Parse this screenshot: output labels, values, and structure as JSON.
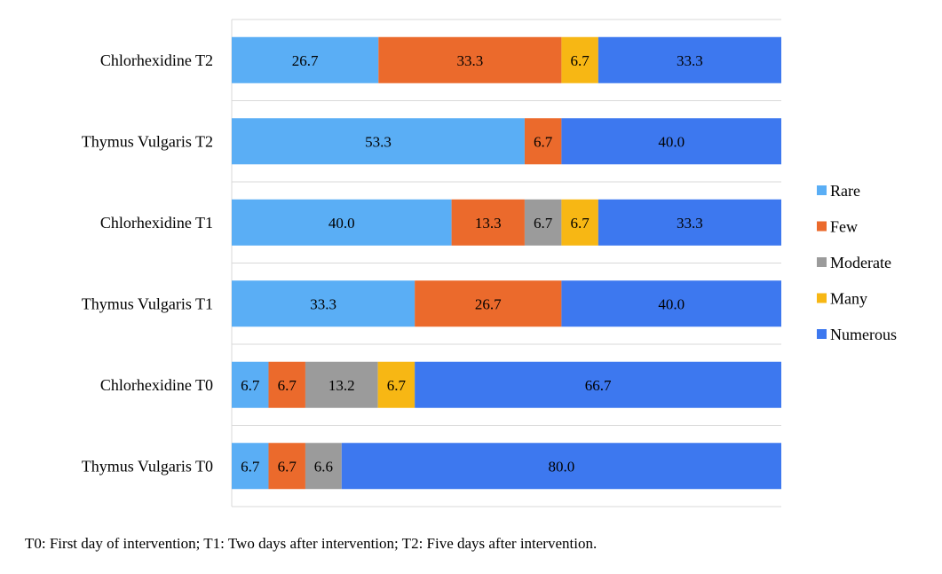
{
  "chart_data": {
    "type": "bar",
    "orientation": "horizontal",
    "stacked": true,
    "percent_stacked": true,
    "grid": true,
    "legend_position": "right",
    "categories": [
      "Chlorhexidine T2",
      "Thymus Vulgaris T2",
      "Chlorhexidine T1",
      "Thymus Vulgaris T1",
      "Chlorhexidine T0",
      "Thymus Vulgaris T0"
    ],
    "series": [
      {
        "name": "Rare",
        "color": "#5aaef5",
        "values": [
          26.7,
          53.3,
          40.0,
          33.3,
          6.7,
          6.7
        ]
      },
      {
        "name": "Few",
        "color": "#eb6a2c",
        "values": [
          33.3,
          6.7,
          13.3,
          26.7,
          6.7,
          6.7
        ]
      },
      {
        "name": "Moderate",
        "color": "#9b9b9b",
        "values": [
          0,
          0,
          6.7,
          0,
          13.2,
          6.6
        ]
      },
      {
        "name": "Many",
        "color": "#f7b714",
        "values": [
          6.7,
          0,
          6.7,
          0,
          6.7,
          0
        ]
      },
      {
        "name": "Numerous",
        "color": "#3d78ef",
        "values": [
          33.3,
          40.0,
          33.3,
          40.0,
          66.7,
          80.0
        ]
      }
    ],
    "xlim": [
      0,
      100
    ],
    "footnote": "T0: First day of intervention; T1: Two days after intervention; T2: Five days after intervention."
  }
}
